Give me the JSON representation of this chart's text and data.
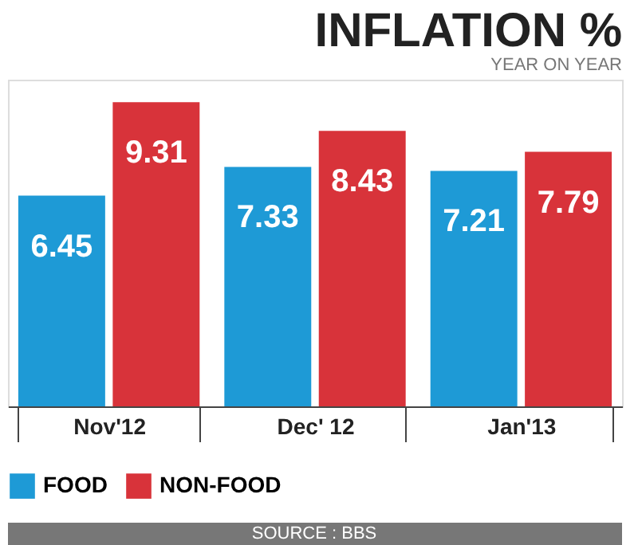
{
  "chart_data": {
    "type": "bar",
    "title": "INFLATION %",
    "subtitle": "YEAR ON YEAR",
    "categories": [
      "Nov'12",
      "Dec' 12",
      "Jan'13"
    ],
    "series": [
      {
        "name": "FOOD",
        "color": "#1e9ad6",
        "values": [
          6.45,
          7.33,
          7.21
        ]
      },
      {
        "name": "NON-FOOD",
        "color": "#d8333a",
        "values": [
          9.31,
          8.43,
          7.79
        ]
      }
    ],
    "data_labels": true,
    "legend": "bottom",
    "annotations": [
      "SOURCE : BBS"
    ]
  }
}
